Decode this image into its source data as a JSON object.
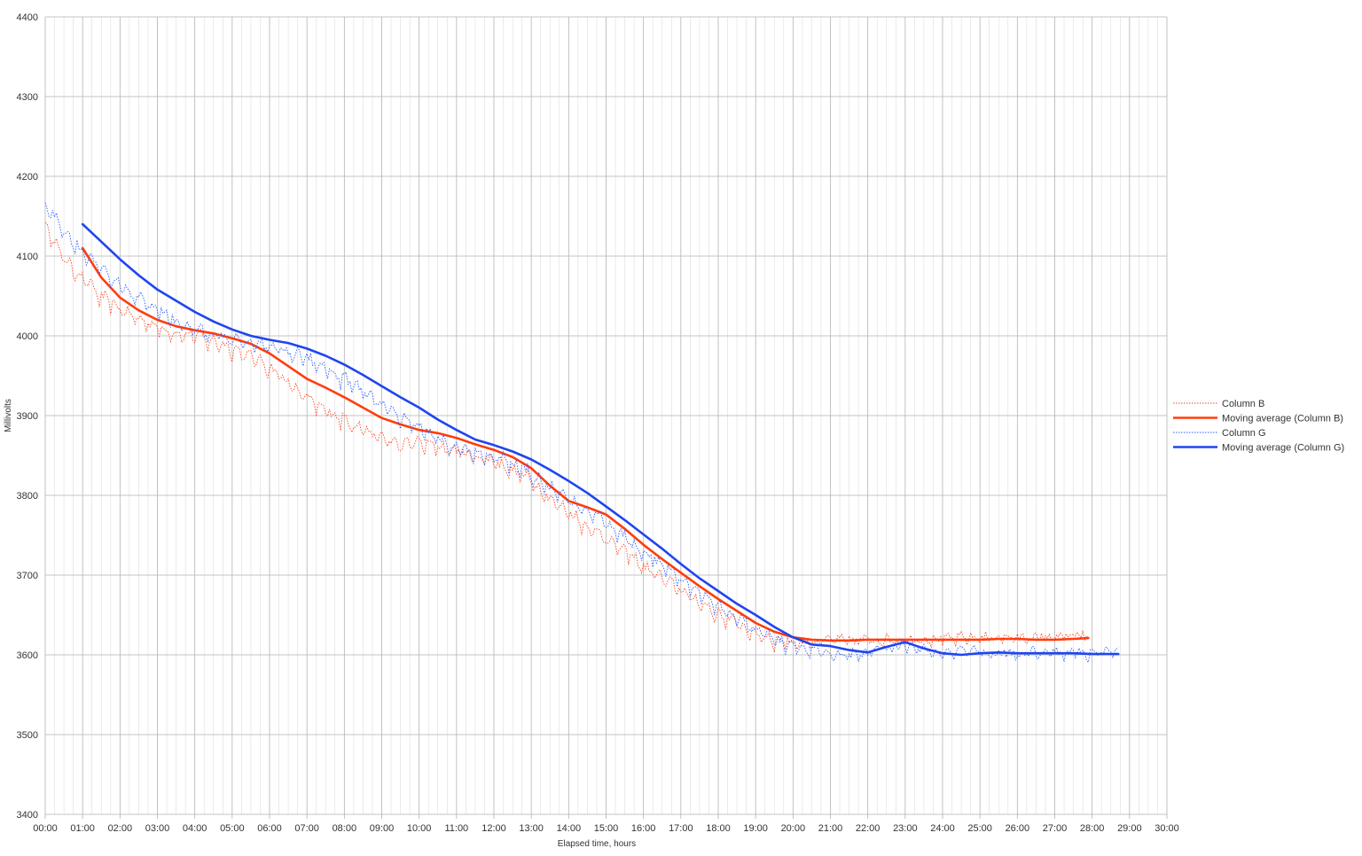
{
  "chart_data": {
    "type": "line",
    "title": "",
    "xlabel": "Elapsed time, hours",
    "ylabel": "Millivolts",
    "xlim": [
      0,
      30
    ],
    "ylim": [
      3400,
      4400
    ],
    "x_unit": "hours",
    "x_tick_labels": [
      "00:00",
      "01:00",
      "02:00",
      "03:00",
      "04:00",
      "05:00",
      "06:00",
      "07:00",
      "08:00",
      "09:00",
      "10:00",
      "11:00",
      "12:00",
      "13:00",
      "14:00",
      "15:00",
      "16:00",
      "17:00",
      "18:00",
      "19:00",
      "20:00",
      "21:00",
      "22:00",
      "23:00",
      "24:00",
      "25:00",
      "26:00",
      "27:00",
      "28:00",
      "29:00",
      "30:00"
    ],
    "y_ticks": [
      3400,
      3500,
      3600,
      3700,
      3800,
      3900,
      4000,
      4100,
      4200,
      4300,
      4400
    ],
    "grid": true,
    "minor_x_grid_per_hour": 4,
    "legend_position": "right",
    "series": [
      {
        "name": "Column B",
        "color": "#ff4420",
        "style": "dotted",
        "noisy": true,
        "x": [
          0,
          0.5,
          1,
          1.5,
          2,
          2.5,
          3,
          3.5,
          4,
          4.5,
          5,
          5.5,
          6,
          6.5,
          7,
          7.5,
          8,
          8.5,
          9,
          9.5,
          10,
          10.5,
          11,
          11.5,
          12,
          12.5,
          13,
          13.5,
          14,
          14.5,
          15,
          15.5,
          16,
          16.5,
          17,
          17.5,
          18,
          18.5,
          19,
          19.5,
          20,
          20.5,
          21,
          21.5,
          22,
          22.5,
          23,
          23.5,
          24,
          24.5,
          25,
          25.5,
          26,
          26.5,
          27,
          27.5,
          27.9
        ],
        "values": [
          4140,
          4095,
          4072,
          4048,
          4032,
          4020,
          4010,
          4002,
          4000,
          3992,
          3984,
          3972,
          3960,
          3940,
          3920,
          3905,
          3895,
          3882,
          3870,
          3862,
          3865,
          3860,
          3855,
          3848,
          3842,
          3830,
          3818,
          3795,
          3778,
          3760,
          3745,
          3728,
          3710,
          3695,
          3680,
          3665,
          3650,
          3638,
          3625,
          3618,
          3615,
          3616,
          3618,
          3617,
          3618,
          3619,
          3618,
          3620,
          3618,
          3621,
          3620,
          3622,
          3620,
          3621,
          3622,
          3623,
          3622
        ]
      },
      {
        "name": "Moving average (Column B)",
        "color": "#ff3d0c",
        "style": "solid",
        "noisy": false,
        "x": [
          1,
          1.5,
          2,
          2.5,
          3,
          3.5,
          4,
          4.5,
          5,
          5.5,
          6,
          6.5,
          7,
          7.5,
          8,
          8.5,
          9,
          9.5,
          10,
          10.5,
          11,
          11.5,
          12,
          12.5,
          13,
          13.5,
          14,
          14.5,
          15,
          15.5,
          16,
          16.5,
          17,
          17.5,
          18,
          18.5,
          19,
          19.5,
          20,
          20.5,
          21,
          21.5,
          22,
          22.5,
          23,
          23.5,
          24,
          24.5,
          25,
          25.5,
          26,
          26.5,
          27,
          27.5,
          27.9
        ],
        "values": [
          4110,
          4073,
          4048,
          4032,
          4020,
          4012,
          4007,
          4003,
          3997,
          3990,
          3978,
          3962,
          3946,
          3935,
          3923,
          3910,
          3897,
          3889,
          3882,
          3878,
          3872,
          3864,
          3857,
          3848,
          3834,
          3812,
          3793,
          3785,
          3776,
          3758,
          3738,
          3720,
          3703,
          3686,
          3670,
          3655,
          3640,
          3629,
          3622,
          3619,
          3618,
          3618,
          3619,
          3619,
          3619,
          3619,
          3619,
          3619,
          3619,
          3620,
          3620,
          3619,
          3619,
          3620,
          3621
        ]
      },
      {
        "name": "Column G",
        "color": "#2a5cff",
        "style": "dotted",
        "noisy": true,
        "x": [
          0,
          0.5,
          1,
          1.5,
          2,
          2.5,
          3,
          3.5,
          4,
          4.5,
          5,
          5.5,
          6,
          6.5,
          7,
          7.5,
          8,
          8.5,
          9,
          9.5,
          10,
          10.5,
          11,
          11.5,
          12,
          12.5,
          13,
          13.5,
          14,
          14.5,
          15,
          15.5,
          16,
          16.5,
          17,
          17.5,
          18,
          18.5,
          19,
          19.5,
          20,
          20.5,
          21,
          21.5,
          22,
          22.5,
          23,
          23.5,
          24,
          24.5,
          25,
          25.5,
          26,
          26.5,
          27,
          27.5,
          28,
          28.5,
          28.7
        ],
        "values": [
          4165,
          4130,
          4105,
          4082,
          4062,
          4045,
          4032,
          4018,
          4008,
          4000,
          3994,
          3990,
          3985,
          3978,
          3970,
          3958,
          3945,
          3928,
          3915,
          3898,
          3885,
          3870,
          3858,
          3852,
          3848,
          3838,
          3826,
          3808,
          3792,
          3780,
          3765,
          3745,
          3728,
          3710,
          3695,
          3678,
          3660,
          3645,
          3632,
          3618,
          3608,
          3605,
          3602,
          3600,
          3603,
          3608,
          3612,
          3605,
          3600,
          3603,
          3604,
          3602,
          3601,
          3603,
          3601,
          3602,
          3601,
          3602,
          3601
        ]
      },
      {
        "name": "Moving average (Column G)",
        "color": "#1f45f0",
        "style": "solid",
        "noisy": false,
        "x": [
          1,
          1.5,
          2,
          2.5,
          3,
          3.5,
          4,
          4.5,
          5,
          5.5,
          6,
          6.5,
          7,
          7.5,
          8,
          8.5,
          9,
          9.5,
          10,
          10.5,
          11,
          11.5,
          12,
          12.5,
          13,
          13.5,
          14,
          14.5,
          15,
          15.5,
          16,
          16.5,
          17,
          17.5,
          18,
          18.5,
          19,
          19.5,
          20,
          20.5,
          21,
          21.5,
          22,
          22.5,
          23,
          23.5,
          24,
          24.5,
          25,
          25.5,
          26,
          26.5,
          27,
          27.5,
          28,
          28.5,
          28.7
        ],
        "values": [
          4140,
          4118,
          4096,
          4076,
          4058,
          4044,
          4030,
          4018,
          4008,
          4000,
          3995,
          3991,
          3984,
          3975,
          3964,
          3951,
          3937,
          3923,
          3910,
          3895,
          3882,
          3870,
          3863,
          3855,
          3845,
          3832,
          3818,
          3803,
          3786,
          3769,
          3751,
          3733,
          3714,
          3696,
          3680,
          3664,
          3650,
          3635,
          3622,
          3613,
          3611,
          3606,
          3603,
          3610,
          3616,
          3608,
          3602,
          3600,
          3602,
          3603,
          3602,
          3602,
          3602,
          3602,
          3601,
          3601,
          3601
        ]
      }
    ]
  }
}
